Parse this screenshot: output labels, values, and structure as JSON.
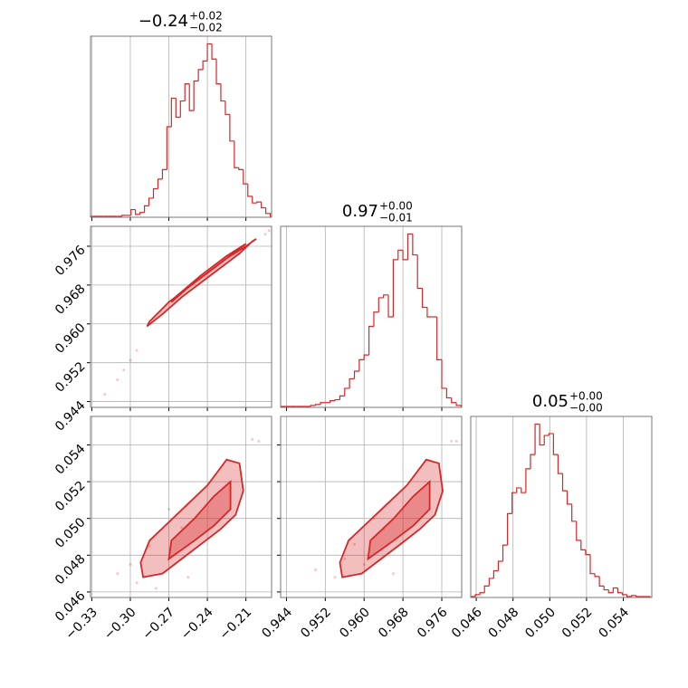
{
  "chart_data": [
    {
      "type": "histogram",
      "title": "−0.24",
      "title_upper": "+0.02",
      "title_lower": "−0.02",
      "color": "#d62728",
      "bins": [
        -0.331,
        -0.3275,
        -0.324,
        -0.3205,
        -0.317,
        -0.3135,
        -0.31,
        -0.3065,
        -0.303,
        -0.2995,
        -0.296,
        -0.2925,
        -0.289,
        -0.2855,
        -0.282,
        -0.2785,
        -0.275,
        -0.2715,
        -0.268,
        -0.2645,
        -0.261,
        -0.2575,
        -0.254,
        -0.2505,
        -0.247,
        -0.2435,
        -0.24,
        -0.2365,
        -0.233,
        -0.2295,
        -0.226,
        -0.2225,
        -0.219,
        -0.2155,
        -0.212,
        -0.2085,
        -0.205,
        -0.2015,
        -0.198,
        -0.1945,
        -0.191
      ],
      "values": [
        1,
        1,
        1,
        1,
        1,
        1,
        1,
        2,
        2,
        8,
        3,
        5,
        12,
        20,
        30,
        40,
        50,
        95,
        125,
        105,
        122,
        140,
        112,
        143,
        155,
        164,
        182,
        166,
        140,
        122,
        108,
        80,
        52,
        50,
        35,
        22,
        15,
        16,
        10,
        4
      ],
      "xlim": [
        -0.331,
        -0.19
      ],
      "ylim": [
        0,
        190
      ],
      "xticks": [
        {
          "value": -0.33,
          "label": "−0.33"
        },
        {
          "value": -0.3,
          "label": "−0.30"
        },
        {
          "value": -0.27,
          "label": "−0.27"
        },
        {
          "value": -0.24,
          "label": "−0.24"
        },
        {
          "value": -0.21,
          "label": "−0.21"
        }
      ],
      "grid": true
    },
    {
      "type": "contour",
      "color": "#d62728",
      "contours": [
        {
          "x": [
            -0.285,
            -0.27,
            -0.255,
            -0.24,
            -0.225,
            -0.21,
            -0.202,
            -0.205,
            -0.215,
            -0.23,
            -0.245,
            -0.26,
            -0.275,
            -0.287
          ],
          "y": [
            0.9605,
            0.9645,
            0.9675,
            0.9705,
            0.9735,
            0.976,
            0.9775,
            0.977,
            0.9745,
            0.9715,
            0.9685,
            0.9655,
            0.962,
            0.9595
          ]
        },
        {
          "x": [
            -0.265,
            -0.245,
            -0.225,
            -0.21,
            -0.215,
            -0.235,
            -0.255,
            -0.268
          ],
          "y": [
            0.9655,
            0.97,
            0.974,
            0.9765,
            0.9755,
            0.9715,
            0.9675,
            0.9645
          ]
        }
      ],
      "points": {
        "x": [
          -0.32,
          -0.31,
          -0.305,
          -0.3,
          -0.295,
          -0.195,
          -0.192
        ],
        "y": [
          0.9455,
          0.9485,
          0.9505,
          0.9525,
          0.9545,
          0.9785,
          0.9792
        ]
      },
      "xlim": [
        -0.331,
        -0.19
      ],
      "ylim": [
        0.9428,
        0.9801
      ],
      "xticks": [
        -0.33,
        -0.3,
        -0.27,
        -0.24,
        -0.21
      ],
      "yticks": [
        0.944,
        0.952,
        {
          "value": 0.96,
          "label": "0.960"
        },
        0.968,
        0.976
      ],
      "grid": true
    },
    {
      "type": "histogram",
      "title": "0.97",
      "title_upper": "+0.00",
      "title_lower": "−0.01",
      "color": "#d62728",
      "bins": [
        0.943,
        0.944,
        0.945,
        0.946,
        0.947,
        0.948,
        0.949,
        0.95,
        0.951,
        0.952,
        0.953,
        0.954,
        0.955,
        0.956,
        0.957,
        0.958,
        0.959,
        0.96,
        0.961,
        0.962,
        0.963,
        0.964,
        0.965,
        0.966,
        0.967,
        0.968,
        0.969,
        0.97,
        0.971,
        0.972,
        0.973,
        0.974,
        0.975,
        0.976,
        0.977,
        0.978,
        0.979,
        0.98
      ],
      "values": [
        1,
        1,
        1,
        1,
        1,
        1,
        2,
        3,
        5,
        5,
        7,
        8,
        12,
        20,
        30,
        38,
        50,
        55,
        85,
        100,
        115,
        118,
        95,
        155,
        165,
        155,
        182,
        160,
        125,
        105,
        95,
        95,
        50,
        20,
        10,
        5,
        2
      ],
      "xlim": [
        0.9428,
        0.9801
      ],
      "ylim": [
        0,
        190
      ],
      "xticks": [
        0.944,
        0.952,
        0.96,
        0.968,
        0.976
      ],
      "grid": true
    },
    {
      "type": "contour",
      "color": "#d62728",
      "contours": [
        {
          "x": [
            -0.29,
            -0.275,
            -0.26,
            -0.245,
            -0.23,
            -0.218,
            -0.212,
            -0.215,
            -0.225,
            -0.24,
            -0.255,
            -0.27,
            -0.285,
            -0.292
          ],
          "y": [
            0.0468,
            0.047,
            0.0478,
            0.0486,
            0.0494,
            0.0502,
            0.0515,
            0.053,
            0.0532,
            0.0518,
            0.0508,
            0.0498,
            0.0488,
            0.0476
          ]
        },
        {
          "x": [
            -0.27,
            -0.25,
            -0.235,
            -0.222,
            -0.222,
            -0.235,
            -0.25,
            -0.268
          ],
          "y": [
            0.0478,
            0.0488,
            0.0496,
            0.0505,
            0.052,
            0.0512,
            0.05,
            0.0488
          ]
        }
      ],
      "points": {
        "x": [
          -0.31,
          -0.3,
          -0.295,
          -0.285,
          -0.28,
          -0.27,
          -0.26,
          -0.255,
          -0.205,
          -0.2
        ],
        "y": [
          0.047,
          0.0475,
          0.0465,
          0.0485,
          0.0462,
          0.0505,
          0.0495,
          0.0468,
          0.0543,
          0.0542
        ]
      },
      "xlim": [
        -0.331,
        -0.19
      ],
      "ylim": [
        0.0457,
        0.05555
      ],
      "xticks": [
        {
          "value": -0.33,
          "label": "−0.33"
        },
        {
          "value": -0.3,
          "label": "−0.30"
        },
        {
          "value": -0.27,
          "label": "−0.27"
        },
        {
          "value": -0.24,
          "label": "−0.24"
        },
        {
          "value": -0.21,
          "label": "−0.21"
        }
      ],
      "yticks": [
        0.046,
        0.048,
        {
          "value": 0.05,
          "label": "0.050"
        },
        0.052,
        0.054
      ],
      "grid": true
    },
    {
      "type": "contour",
      "color": "#d62728",
      "contours": [
        {
          "x": [
            0.9555,
            0.9595,
            0.9635,
            0.9675,
            0.9714,
            0.9746,
            0.9762,
            0.9754,
            0.9728,
            0.9688,
            0.9648,
            0.9608,
            0.9568,
            0.955
          ],
          "y": [
            0.0468,
            0.047,
            0.0478,
            0.0486,
            0.0494,
            0.0502,
            0.0515,
            0.053,
            0.0532,
            0.0518,
            0.0508,
            0.0498,
            0.0488,
            0.0476
          ]
        },
        {
          "x": [
            0.9608,
            0.9661,
            0.9701,
            0.9735,
            0.9735,
            0.9701,
            0.9661,
            0.9613
          ],
          "y": [
            0.0478,
            0.0488,
            0.0496,
            0.0505,
            0.052,
            0.0512,
            0.05,
            0.0488
          ]
        }
      ],
      "points": {
        "x": [
          0.95,
          0.954,
          0.956,
          0.958,
          0.96,
          0.962,
          0.964,
          0.966,
          0.978,
          0.979
        ],
        "y": [
          0.0472,
          0.0468,
          0.0478,
          0.0486,
          0.0475,
          0.05,
          0.0494,
          0.047,
          0.0542,
          0.0542
        ]
      },
      "xlim": [
        0.9428,
        0.9801
      ],
      "ylim": [
        0.0457,
        0.05555
      ],
      "xticks": [
        0.944,
        0.952,
        {
          "value": 0.96,
          "label": "0.960"
        },
        0.968,
        0.976
      ],
      "yticks": [
        0.046,
        0.048,
        0.05,
        0.052,
        0.054
      ],
      "grid": true
    },
    {
      "type": "histogram",
      "title": "0.05",
      "title_upper": "+0.00",
      "title_lower": "−0.00",
      "color": "#d62728",
      "bins": [
        0.0457,
        0.04595,
        0.0462,
        0.04645,
        0.0467,
        0.04695,
        0.0472,
        0.04745,
        0.0477,
        0.04795,
        0.0482,
        0.04845,
        0.0487,
        0.04895,
        0.0492,
        0.04945,
        0.0497,
        0.04995,
        0.0502,
        0.05045,
        0.0507,
        0.05095,
        0.0512,
        0.05145,
        0.0517,
        0.05195,
        0.0522,
        0.05245,
        0.0527,
        0.05295,
        0.0532,
        0.05345,
        0.0537,
        0.05395,
        0.0542,
        0.05445,
        0.0547,
        0.05495,
        0.0552,
        0.05545
      ],
      "values": [
        1,
        3,
        5,
        12,
        20,
        28,
        38,
        55,
        88,
        110,
        115,
        110,
        135,
        150,
        182,
        160,
        170,
        172,
        150,
        130,
        112,
        98,
        80,
        60,
        50,
        45,
        25,
        22,
        12,
        8,
        5,
        10,
        5,
        3,
        1,
        2,
        1,
        1,
        1
      ],
      "xlim": [
        0.0457,
        0.05555
      ],
      "ylim": [
        0,
        190
      ],
      "xticks": [
        0.046,
        0.048,
        {
          "value": 0.05,
          "label": "0.050"
        },
        0.052,
        0.054
      ],
      "grid": true
    }
  ]
}
